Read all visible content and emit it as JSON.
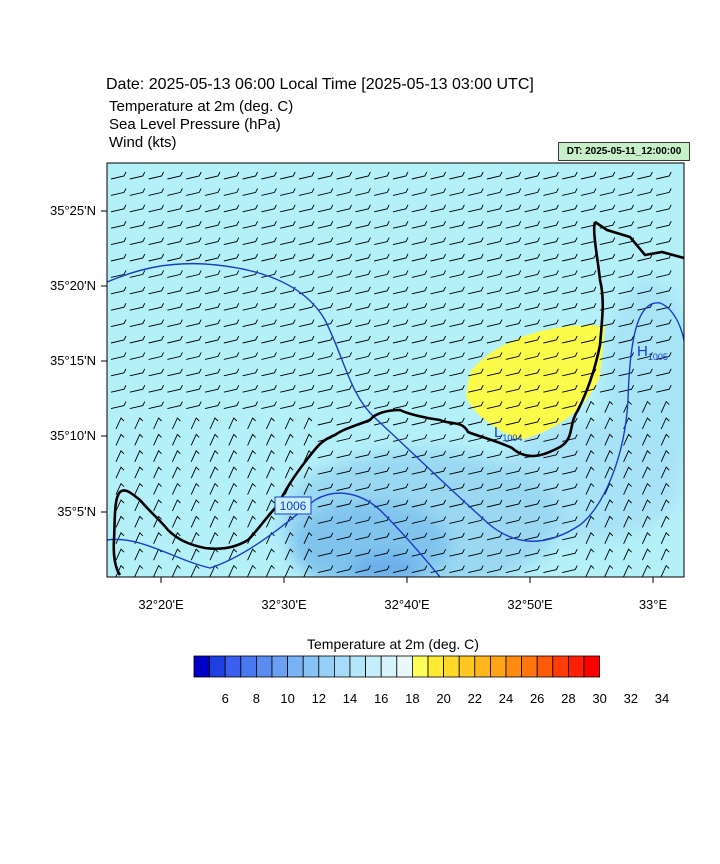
{
  "header": {
    "date_line": "Date: 2025-05-13  06:00 Local Time [2025-05-13  03:00 UTC]",
    "fields": [
      "Temperature at 2m   (deg. C)",
      "Sea Level Pressure   (hPa)",
      "Wind   (kts)"
    ],
    "dt_badge": "DT: 2025-05-11_12:00:00"
  },
  "map": {
    "lat_labels": [
      "35°25'N",
      "35°20'N",
      "35°15'N",
      "35°10'N",
      "35°5'N"
    ],
    "lon_labels": [
      "32°20'E",
      "32°30'E",
      "32°40'E",
      "32°50'E",
      "33°E"
    ],
    "pressure_labels": [
      {
        "kind": "H",
        "value": "1005"
      },
      {
        "kind": "L",
        "value": "1004"
      },
      {
        "kind": "contour",
        "value": "1006"
      }
    ],
    "colors": {
      "sea": "#b4f0f8",
      "land_warm": "#fbfb4a",
      "cool": "#9ad8f0",
      "contour": "#1a3ccc",
      "coast": "#000000"
    }
  },
  "colorbar": {
    "title": "Temperature at 2m  (deg. C)",
    "tick_labels": [
      "6",
      "8",
      "10",
      "12",
      "14",
      "16",
      "18",
      "20",
      "22",
      "24",
      "26",
      "28",
      "30",
      "32",
      "34"
    ],
    "colors": [
      "#0000c8",
      "#1f3fe0",
      "#3c5ff0",
      "#4a78f0",
      "#5a8cf0",
      "#69a0f2",
      "#78b2f4",
      "#86c2f6",
      "#96d0f8",
      "#a6dcfa",
      "#b4e6fa",
      "#c4eefa",
      "#d6f4fa",
      "#eaf8fc",
      "#ffff5a",
      "#ffea32",
      "#ffd828",
      "#ffc81e",
      "#ffb61a",
      "#ffa416",
      "#ff8c10",
      "#ff740c",
      "#ff5a08",
      "#ff3c06",
      "#ff2004",
      "#ff0000"
    ]
  }
}
